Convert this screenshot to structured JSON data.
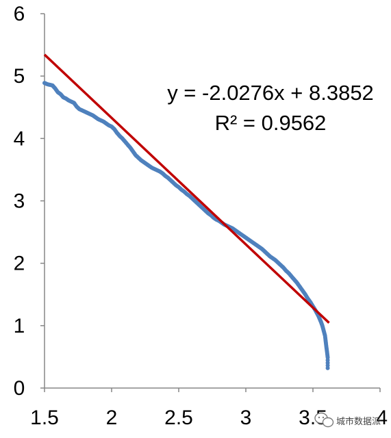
{
  "chart_data": {
    "type": "scatter",
    "title": "",
    "xlabel": "",
    "ylabel": "",
    "xlim": [
      1.5,
      4
    ],
    "ylim": [
      0,
      6
    ],
    "x_ticks": [
      "1.5",
      "2",
      "2.5",
      "3",
      "3.5",
      "4"
    ],
    "y_ticks": [
      "0",
      "1",
      "2",
      "3",
      "4",
      "5",
      "6"
    ],
    "grid": false,
    "legend": "none",
    "series": [
      {
        "marker_color": "#4f81bd",
        "points": [
          [
            1.5,
            4.89
          ],
          [
            1.52,
            4.87
          ],
          [
            1.54,
            4.86
          ],
          [
            1.56,
            4.85
          ],
          [
            1.58,
            4.8
          ],
          [
            1.6,
            4.74
          ],
          [
            1.62,
            4.71
          ],
          [
            1.64,
            4.66
          ],
          [
            1.66,
            4.64
          ],
          [
            1.68,
            4.61
          ],
          [
            1.7,
            4.59
          ],
          [
            1.72,
            4.57
          ],
          [
            1.74,
            4.51
          ],
          [
            1.76,
            4.47
          ],
          [
            1.78,
            4.45
          ],
          [
            1.8,
            4.43
          ],
          [
            1.82,
            4.41
          ],
          [
            1.84,
            4.39
          ],
          [
            1.86,
            4.37
          ],
          [
            1.88,
            4.34
          ],
          [
            1.9,
            4.31
          ],
          [
            1.92,
            4.29
          ],
          [
            1.94,
            4.27
          ],
          [
            1.96,
            4.24
          ],
          [
            1.98,
            4.21
          ],
          [
            2.0,
            4.19
          ],
          [
            2.02,
            4.15
          ],
          [
            2.04,
            4.09
          ],
          [
            2.06,
            4.04
          ],
          [
            2.08,
            4.0
          ],
          [
            2.1,
            3.95
          ],
          [
            2.12,
            3.9
          ],
          [
            2.14,
            3.85
          ],
          [
            2.16,
            3.79
          ],
          [
            2.18,
            3.73
          ],
          [
            2.2,
            3.69
          ],
          [
            2.22,
            3.65
          ],
          [
            2.24,
            3.62
          ],
          [
            2.26,
            3.59
          ],
          [
            2.28,
            3.56
          ],
          [
            2.3,
            3.53
          ],
          [
            2.32,
            3.51
          ],
          [
            2.34,
            3.49
          ],
          [
            2.36,
            3.47
          ],
          [
            2.38,
            3.44
          ],
          [
            2.4,
            3.4
          ],
          [
            2.42,
            3.37
          ],
          [
            2.44,
            3.33
          ],
          [
            2.46,
            3.29
          ],
          [
            2.48,
            3.25
          ],
          [
            2.5,
            3.22
          ],
          [
            2.52,
            3.18
          ],
          [
            2.54,
            3.15
          ],
          [
            2.56,
            3.11
          ],
          [
            2.58,
            3.08
          ],
          [
            2.6,
            3.04
          ],
          [
            2.62,
            3.0
          ],
          [
            2.64,
            2.96
          ],
          [
            2.66,
            2.92
          ],
          [
            2.68,
            2.88
          ],
          [
            2.7,
            2.84
          ],
          [
            2.72,
            2.8
          ],
          [
            2.74,
            2.77
          ],
          [
            2.76,
            2.73
          ],
          [
            2.78,
            2.7
          ],
          [
            2.8,
            2.68
          ],
          [
            2.82,
            2.65
          ],
          [
            2.84,
            2.62
          ],
          [
            2.86,
            2.6
          ],
          [
            2.88,
            2.58
          ],
          [
            2.9,
            2.56
          ],
          [
            2.92,
            2.53
          ],
          [
            2.94,
            2.5
          ],
          [
            2.96,
            2.47
          ],
          [
            2.98,
            2.44
          ],
          [
            3.0,
            2.41
          ],
          [
            3.02,
            2.38
          ],
          [
            3.04,
            2.35
          ],
          [
            3.06,
            2.32
          ],
          [
            3.08,
            2.29
          ],
          [
            3.1,
            2.26
          ],
          [
            3.12,
            2.23
          ],
          [
            3.14,
            2.19
          ],
          [
            3.16,
            2.15
          ],
          [
            3.18,
            2.11
          ],
          [
            3.2,
            2.08
          ],
          [
            3.22,
            2.05
          ],
          [
            3.24,
            2.01
          ],
          [
            3.26,
            1.97
          ],
          [
            3.28,
            1.93
          ],
          [
            3.3,
            1.88
          ],
          [
            3.32,
            1.84
          ],
          [
            3.34,
            1.79
          ],
          [
            3.36,
            1.74
          ],
          [
            3.38,
            1.69
          ],
          [
            3.4,
            1.63
          ],
          [
            3.42,
            1.57
          ],
          [
            3.44,
            1.51
          ],
          [
            3.46,
            1.44
          ],
          [
            3.48,
            1.38
          ],
          [
            3.5,
            1.31
          ],
          [
            3.52,
            1.24
          ],
          [
            3.53,
            1.2
          ],
          [
            3.54,
            1.16
          ],
          [
            3.55,
            1.11
          ],
          [
            3.56,
            1.06
          ],
          [
            3.57,
            1.0
          ],
          [
            3.58,
            0.92
          ],
          [
            3.59,
            0.84
          ],
          [
            3.595,
            0.75
          ],
          [
            3.6,
            0.66
          ],
          [
            3.605,
            0.58
          ],
          [
            3.61,
            0.49
          ],
          [
            3.61,
            0.32
          ]
        ]
      }
    ],
    "trendline": {
      "slope": -2.0276,
      "intercept": 8.3852,
      "x_range": [
        1.5,
        3.62
      ],
      "color": "#c00000"
    },
    "annotations": {
      "equation": "y = -2.0276x + 8.3852",
      "r_squared": "R² = 0.9562"
    }
  },
  "watermark": {
    "text": "城市数据派"
  }
}
